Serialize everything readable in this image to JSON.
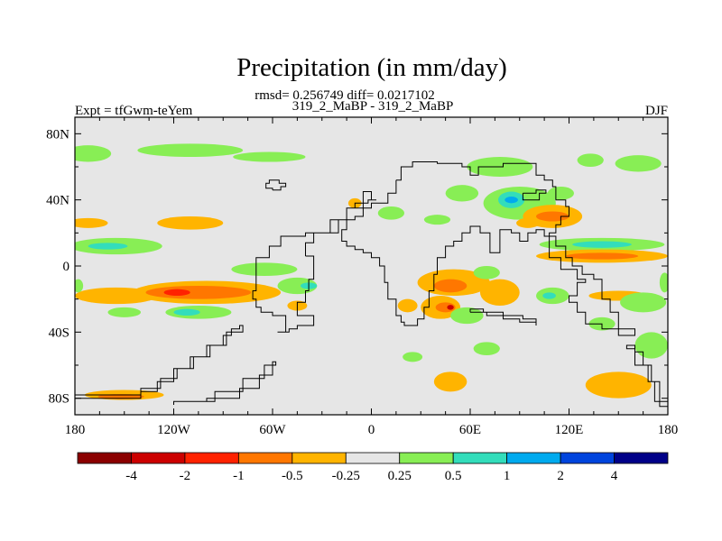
{
  "chart_data": {
    "type": "heatmap",
    "title": "Precipitation (in mm/day)",
    "subtitle_stats": "rmsd= 0.256749 diff= 0.0217102",
    "subtitle_runs": "319_2_MaBP - 319_2_MaBP",
    "left_label": "Expt = tfGwm-teYem",
    "right_label": "DJF",
    "x_ticks": [
      "180",
      "120W",
      "60W",
      "0",
      "60E",
      "120E",
      "180"
    ],
    "y_ticks": [
      "80N",
      "40N",
      "0",
      "40S",
      "80S"
    ],
    "xlim": [
      -180,
      180
    ],
    "ylim": [
      -90,
      90
    ],
    "colorbar": {
      "labels": [
        "-4",
        "-2",
        "-1",
        "-0.5",
        "-0.25",
        "0.25",
        "0.5",
        "1",
        "2",
        "4"
      ],
      "colors": [
        "#8b0000",
        "#cc0000",
        "#ff2200",
        "#ff7700",
        "#ffb400",
        "#e6e6e6",
        "#88ee55",
        "#33ddbb",
        "#00aaee",
        "#0044dd",
        "#000088"
      ]
    },
    "field_colors": {
      "background": "#e6e6e6",
      "neg_low": "#ffb400",
      "neg_mid": "#ff7700",
      "neg_high": "#ff2200",
      "neg_max": "#cc0000",
      "pos_low": "#88ee55",
      "pos_mid": "#33ddbb",
      "pos_high": "#00aaee"
    },
    "anomaly_regions": [
      {
        "class": "pos_low",
        "lon": -172,
        "lat": 68,
        "rlon": 14,
        "rlat": 5
      },
      {
        "class": "pos_low",
        "lon": -110,
        "lat": 70,
        "rlon": 32,
        "rlat": 4
      },
      {
        "class": "pos_low",
        "lon": -62,
        "lat": 66,
        "rlon": 22,
        "rlat": 3
      },
      {
        "class": "pos_low",
        "lon": 78,
        "lat": 60,
        "rlon": 20,
        "rlat": 6
      },
      {
        "class": "pos_low",
        "lon": 133,
        "lat": 64,
        "rlon": 8,
        "rlat": 4
      },
      {
        "class": "pos_low",
        "lon": 162,
        "lat": 62,
        "rlon": 14,
        "rlat": 5
      },
      {
        "class": "pos_low",
        "lon": 115,
        "lat": 44,
        "rlon": 8,
        "rlat": 4
      },
      {
        "class": "pos_low",
        "lon": 90,
        "lat": 38,
        "rlon": 22,
        "rlat": 10
      },
      {
        "class": "pos_mid",
        "lon": 85,
        "lat": 40,
        "rlon": 8,
        "rlat": 5
      },
      {
        "class": "pos_high",
        "lon": 85,
        "lat": 40,
        "rlon": 4,
        "rlat": 2
      },
      {
        "class": "pos_low",
        "lon": 55,
        "lat": 44,
        "rlon": 10,
        "rlat": 5
      },
      {
        "class": "pos_low",
        "lon": 12,
        "lat": 32,
        "rlon": 8,
        "rlat": 4
      },
      {
        "class": "pos_low",
        "lon": 40,
        "lat": 28,
        "rlon": 8,
        "rlat": 3
      },
      {
        "class": "neg_low",
        "lon": 110,
        "lat": 30,
        "rlon": 18,
        "rlat": 7
      },
      {
        "class": "neg_mid",
        "lon": 110,
        "lat": 30,
        "rlon": 10,
        "rlat": 3
      },
      {
        "class": "neg_low",
        "lon": -10,
        "lat": 38,
        "rlon": 4,
        "rlat": 3
      },
      {
        "class": "neg_low",
        "lon": 95,
        "lat": 26,
        "rlon": 7,
        "rlat": 3
      },
      {
        "class": "neg_low",
        "lon": -110,
        "lat": 26,
        "rlon": 20,
        "rlat": 4
      },
      {
        "class": "neg_low",
        "lon": -172,
        "lat": 26,
        "rlon": 12,
        "rlat": 3
      },
      {
        "class": "pos_low",
        "lon": -155,
        "lat": 12,
        "rlon": 28,
        "rlat": 5
      },
      {
        "class": "pos_mid",
        "lon": -160,
        "lat": 12,
        "rlon": 12,
        "rlat": 2
      },
      {
        "class": "pos_low",
        "lon": 140,
        "lat": 13,
        "rlon": 38,
        "rlat": 4
      },
      {
        "class": "pos_mid",
        "lon": 140,
        "lat": 13,
        "rlon": 18,
        "rlat": 2
      },
      {
        "class": "neg_low",
        "lon": 140,
        "lat": 6,
        "rlon": 40,
        "rlat": 4
      },
      {
        "class": "neg_mid",
        "lon": 140,
        "lat": 6,
        "rlon": 22,
        "rlat": 2
      },
      {
        "class": "neg_low",
        "lon": -155,
        "lat": -18,
        "rlon": 25,
        "rlat": 5
      },
      {
        "class": "neg_low",
        "lon": -100,
        "lat": -16,
        "rlon": 45,
        "rlat": 7
      },
      {
        "class": "neg_mid",
        "lon": -105,
        "lat": -16,
        "rlon": 32,
        "rlat": 4
      },
      {
        "class": "neg_high",
        "lon": -118,
        "lat": -16,
        "rlon": 8,
        "rlat": 2
      },
      {
        "class": "pos_low",
        "lon": -65,
        "lat": -2,
        "rlon": 20,
        "rlat": 4
      },
      {
        "class": "pos_low",
        "lon": -45,
        "lat": -12,
        "rlon": 12,
        "rlat": 5
      },
      {
        "class": "pos_mid",
        "lon": -38,
        "lat": -12,
        "rlon": 5,
        "rlat": 2
      },
      {
        "class": "pos_low",
        "lon": -150,
        "lat": -28,
        "rlon": 10,
        "rlat": 3
      },
      {
        "class": "pos_low",
        "lon": -105,
        "lat": -28,
        "rlon": 20,
        "rlat": 4
      },
      {
        "class": "pos_mid",
        "lon": -112,
        "lat": -28,
        "rlon": 8,
        "rlat": 2
      },
      {
        "class": "neg_low",
        "lon": -45,
        "lat": -24,
        "rlon": 6,
        "rlat": 3
      },
      {
        "class": "neg_low",
        "lon": -150,
        "lat": -78,
        "rlon": 24,
        "rlat": 3
      },
      {
        "class": "neg_mid",
        "lon": -152,
        "lat": -79,
        "rlon": 14,
        "rlat": 1.5
      },
      {
        "class": "neg_low",
        "lon": 50,
        "lat": -10,
        "rlon": 22,
        "rlat": 8
      },
      {
        "class": "neg_mid",
        "lon": 48,
        "lat": -12,
        "rlon": 10,
        "rlat": 4
      },
      {
        "class": "neg_low",
        "lon": 78,
        "lat": -16,
        "rlon": 12,
        "rlat": 8
      },
      {
        "class": "neg_low",
        "lon": 42,
        "lat": -25,
        "rlon": 12,
        "rlat": 7
      },
      {
        "class": "neg_mid",
        "lon": 45,
        "lat": -25,
        "rlon": 6,
        "rlat": 3
      },
      {
        "class": "neg_max",
        "lon": 48,
        "lat": -25,
        "rlon": 2,
        "rlat": 1.5
      },
      {
        "class": "neg_low",
        "lon": 22,
        "lat": -24,
        "rlon": 6,
        "rlat": 4
      },
      {
        "class": "pos_low",
        "lon": 58,
        "lat": -30,
        "rlon": 10,
        "rlat": 5
      },
      {
        "class": "pos_low",
        "lon": 70,
        "lat": -4,
        "rlon": 8,
        "rlat": 4
      },
      {
        "class": "pos_low",
        "lon": 110,
        "lat": -18,
        "rlon": 10,
        "rlat": 5
      },
      {
        "class": "pos_mid",
        "lon": 108,
        "lat": -18,
        "rlon": 4,
        "rlat": 2
      },
      {
        "class": "neg_low",
        "lon": 150,
        "lat": -18,
        "rlon": 18,
        "rlat": 3
      },
      {
        "class": "pos_low",
        "lon": 165,
        "lat": -22,
        "rlon": 14,
        "rlat": 6
      },
      {
        "class": "pos_low",
        "lon": 170,
        "lat": -48,
        "rlon": 10,
        "rlat": 8
      },
      {
        "class": "pos_low",
        "lon": 140,
        "lat": -35,
        "rlon": 8,
        "rlat": 4
      },
      {
        "class": "pos_low",
        "lon": 70,
        "lat": -50,
        "rlon": 8,
        "rlat": 4
      },
      {
        "class": "pos_low",
        "lon": 25,
        "lat": -55,
        "rlon": 6,
        "rlat": 3
      },
      {
        "class": "neg_low",
        "lon": 48,
        "lat": -70,
        "rlon": 10,
        "rlat": 6
      },
      {
        "class": "neg_low",
        "lon": 150,
        "lat": -72,
        "rlon": 20,
        "rlat": 8
      },
      {
        "class": "pos_low",
        "lon": 178,
        "lat": -10,
        "rlon": 3,
        "rlat": 6
      },
      {
        "class": "pos_low",
        "lon": -178,
        "lat": -12,
        "rlon": 3,
        "rlat": 4
      }
    ],
    "land_outlines": [
      [
        [
          -40,
          6
        ],
        [
          -35,
          4
        ],
        [
          -35,
          -8
        ],
        [
          -38,
          -15
        ],
        [
          -40,
          -22
        ],
        [
          -45,
          -26
        ],
        [
          -45,
          -30
        ],
        [
          -35,
          -30
        ],
        [
          -35,
          -36
        ],
        [
          -45,
          -38
        ],
        [
          -50,
          -40
        ],
        [
          -57,
          -40
        ],
        [
          -52,
          -30
        ],
        [
          -60,
          -28
        ],
        [
          -67,
          -25
        ],
        [
          -70,
          -20
        ],
        [
          -72,
          -15
        ],
        [
          -70,
          -5
        ],
        [
          -70,
          5
        ],
        [
          -62,
          12
        ],
        [
          -55,
          18
        ],
        [
          -40,
          20
        ],
        [
          -20,
          28
        ],
        [
          -15,
          35
        ],
        [
          -10,
          38
        ],
        [
          -2,
          40
        ],
        [
          3,
          40
        ],
        [
          0,
          45
        ],
        [
          -5,
          35
        ],
        [
          -15,
          28
        ],
        [
          -25,
          20
        ],
        [
          -35,
          14
        ],
        [
          -40,
          6
        ]
      ],
      [
        [
          15,
          52
        ],
        [
          18,
          60
        ],
        [
          25,
          63
        ],
        [
          40,
          62
        ],
        [
          55,
          60
        ],
        [
          60,
          55
        ],
        [
          65,
          60
        ],
        [
          80,
          62
        ],
        [
          90,
          62
        ],
        [
          100,
          55
        ],
        [
          105,
          52
        ],
        [
          110,
          48
        ],
        [
          112,
          40
        ],
        [
          118,
          36
        ],
        [
          120,
          30
        ],
        [
          115,
          25
        ],
        [
          112,
          20
        ],
        [
          108,
          12
        ],
        [
          108,
          5
        ],
        [
          115,
          -2
        ],
        [
          125,
          -8
        ],
        [
          130,
          -10
        ],
        [
          125,
          -18
        ],
        [
          120,
          -22
        ],
        [
          125,
          -28
        ],
        [
          130,
          -30
        ],
        [
          130,
          -35
        ],
        [
          140,
          -38
        ],
        [
          150,
          -42
        ],
        [
          160,
          -38
        ],
        [
          150,
          -28
        ],
        [
          145,
          -20
        ],
        [
          140,
          -12
        ],
        [
          140,
          -8
        ],
        [
          135,
          -5
        ],
        [
          128,
          0
        ],
        [
          122,
          5
        ],
        [
          118,
          12
        ],
        [
          112,
          18
        ],
        [
          105,
          22
        ],
        [
          100,
          20
        ],
        [
          95,
          15
        ],
        [
          90,
          20
        ],
        [
          85,
          22
        ],
        [
          78,
          8
        ],
        [
          72,
          20
        ],
        [
          66,
          24
        ],
        [
          60,
          20
        ],
        [
          55,
          15
        ],
        [
          50,
          12
        ],
        [
          45,
          5
        ],
        [
          40,
          -5
        ],
        [
          38,
          -15
        ],
        [
          35,
          -25
        ],
        [
          32,
          -32
        ],
        [
          28,
          -36
        ],
        [
          20,
          -34
        ],
        [
          18,
          -30
        ],
        [
          15,
          -20
        ],
        [
          10,
          -10
        ],
        [
          8,
          0
        ],
        [
          5,
          5
        ],
        [
          0,
          8
        ],
        [
          -5,
          10
        ],
        [
          -10,
          12
        ],
        [
          -15,
          15
        ],
        [
          -18,
          22
        ],
        [
          -15,
          28
        ],
        [
          -10,
          30
        ],
        [
          -5,
          35
        ],
        [
          0,
          38
        ],
        [
          5,
          38
        ],
        [
          10,
          44
        ],
        [
          15,
          50
        ],
        [
          15,
          52
        ]
      ],
      [
        [
          -180,
          -78
        ],
        [
          -160,
          -78
        ],
        [
          -140,
          -76
        ],
        [
          -130,
          -70
        ],
        [
          -120,
          -62
        ],
        [
          -110,
          -55
        ],
        [
          -100,
          -48
        ],
        [
          -90,
          -42
        ],
        [
          -85,
          -38
        ],
        [
          -80,
          -36
        ],
        [
          -78,
          -40
        ],
        [
          -88,
          -48
        ],
        [
          -98,
          -55
        ],
        [
          -108,
          -62
        ],
        [
          -118,
          -68
        ],
        [
          -128,
          -74
        ],
        [
          -140,
          -80
        ],
        [
          -160,
          -80
        ],
        [
          -180,
          -80
        ],
        [
          -180,
          -78
        ]
      ],
      [
        [
          -120,
          -82
        ],
        [
          -100,
          -80
        ],
        [
          -80,
          -74
        ],
        [
          -68,
          -66
        ],
        [
          -60,
          -58
        ],
        [
          -58,
          -60
        ],
        [
          -65,
          -68
        ],
        [
          -78,
          -76
        ],
        [
          -95,
          -82
        ],
        [
          -120,
          -84
        ],
        [
          -120,
          -82
        ]
      ],
      [
        [
          60,
          -28
        ],
        [
          70,
          -30
        ],
        [
          80,
          -32
        ],
        [
          90,
          -34
        ],
        [
          100,
          -36
        ],
        [
          100,
          -32
        ],
        [
          92,
          -30
        ],
        [
          80,
          -28
        ],
        [
          68,
          -26
        ],
        [
          60,
          -28
        ]
      ],
      [
        [
          180,
          -85
        ],
        [
          175,
          -70
        ],
        [
          170,
          -60
        ],
        [
          165,
          -52
        ],
        [
          160,
          -48
        ],
        [
          155,
          -50
        ],
        [
          160,
          -60
        ],
        [
          168,
          -70
        ],
        [
          172,
          -82
        ],
        [
          180,
          -85
        ]
      ],
      [
        [
          -60,
          46
        ],
        [
          -55,
          48
        ],
        [
          -52,
          50
        ],
        [
          -56,
          52
        ],
        [
          -62,
          50
        ],
        [
          -64,
          47
        ],
        [
          -60,
          46
        ]
      ],
      [
        [
          92,
          44
        ],
        [
          100,
          46
        ],
        [
          106,
          44
        ],
        [
          102,
          40
        ],
        [
          94,
          40
        ],
        [
          92,
          44
        ]
      ]
    ]
  }
}
